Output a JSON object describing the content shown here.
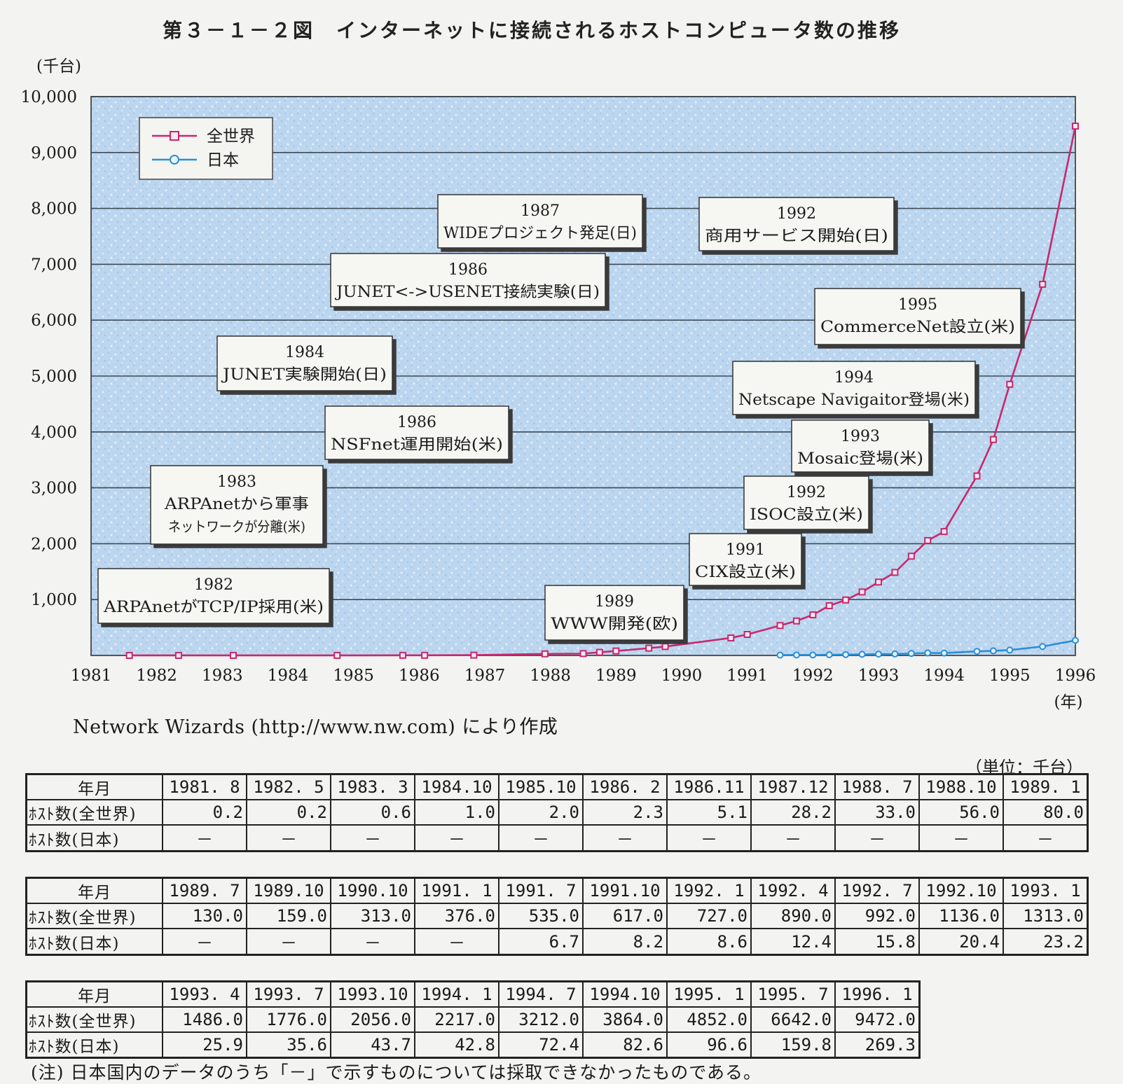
{
  "title": "第３－１－２図　インターネットに接続されるホストコンピュータ数の推移",
  "source": "Network Wizards (http://www.nw.com) により作成",
  "unit_note": "（単位：千台）",
  "footnote": "(注) 日本国内のデータのうち「－」で示すものについては採取できなかったものである。",
  "chart_data": {
    "type": "line",
    "ylabel": "(千台)",
    "xlabel": "(年)",
    "ylim": [
      0,
      10000
    ],
    "xlim": [
      1981,
      1996
    ],
    "yticks": [
      "10,000",
      "9,000",
      "8,000",
      "7,000",
      "6,000",
      "5,000",
      "4,000",
      "3,000",
      "2,000",
      "1,000"
    ],
    "xticks": [
      "1981",
      "1982",
      "1983",
      "1984",
      "1985",
      "1986",
      "1987",
      "1988",
      "1989",
      "1990",
      "1991",
      "1992",
      "1993",
      "1994",
      "1995",
      "1996"
    ],
    "legend_position": "top-left",
    "series": [
      {
        "name": "全世界",
        "color": "#c8286e",
        "marker": "square",
        "points": [
          [
            "1981.8",
            0.2
          ],
          [
            "1982.5",
            0.2
          ],
          [
            "1983.3",
            0.6
          ],
          [
            "1984.10",
            1.0
          ],
          [
            "1985.10",
            2.0
          ],
          [
            "1986.2",
            2.3
          ],
          [
            "1986.11",
            5.1
          ],
          [
            "1987.12",
            28.2
          ],
          [
            "1988.7",
            33.0
          ],
          [
            "1988.10",
            56.0
          ],
          [
            "1989.1",
            80.0
          ],
          [
            "1989.7",
            130.0
          ],
          [
            "1989.10",
            159.0
          ],
          [
            "1990.10",
            313.0
          ],
          [
            "1991.1",
            376.0
          ],
          [
            "1991.7",
            535.0
          ],
          [
            "1991.10",
            617.0
          ],
          [
            "1992.1",
            727.0
          ],
          [
            "1992.4",
            890.0
          ],
          [
            "1992.7",
            992.0
          ],
          [
            "1992.10",
            1136.0
          ],
          [
            "1993.1",
            1313.0
          ],
          [
            "1993.4",
            1486.0
          ],
          [
            "1993.7",
            1776.0
          ],
          [
            "1993.10",
            2056.0
          ],
          [
            "1994.1",
            2217.0
          ],
          [
            "1994.7",
            3212.0
          ],
          [
            "1994.10",
            3864.0
          ],
          [
            "1995.1",
            4852.0
          ],
          [
            "1995.7",
            6642.0
          ],
          [
            "1996.1",
            9472.0
          ]
        ]
      },
      {
        "name": "日本",
        "color": "#2a8fd8",
        "marker": "circle",
        "points": [
          [
            "1991.7",
            6.7
          ],
          [
            "1991.10",
            8.2
          ],
          [
            "1992.1",
            8.6
          ],
          [
            "1992.4",
            12.4
          ],
          [
            "1992.7",
            15.8
          ],
          [
            "1992.10",
            20.4
          ],
          [
            "1993.1",
            23.2
          ],
          [
            "1993.4",
            25.9
          ],
          [
            "1993.7",
            35.6
          ],
          [
            "1993.10",
            43.7
          ],
          [
            "1994.1",
            42.8
          ],
          [
            "1994.7",
            72.4
          ],
          [
            "1994.10",
            82.6
          ],
          [
            "1995.1",
            96.6
          ],
          [
            "1995.7",
            159.8
          ],
          [
            "1996.1",
            269.3
          ]
        ]
      }
    ],
    "annotations": [
      {
        "year": "1982",
        "text": "ARPAnetがTCP/IP採用(米)"
      },
      {
        "year": "1983",
        "text": "ARPAnetから軍事",
        "text2": "ネットワークが分離(米)"
      },
      {
        "year": "1984",
        "text": "JUNET実験開始(日)"
      },
      {
        "year": "1986",
        "text": "NSFnet運用開始(米)"
      },
      {
        "year": "1986",
        "text": "JUNET<->USENET接続実験(日)"
      },
      {
        "year": "1987",
        "text": "WIDEプロジェクト発足(日)"
      },
      {
        "year": "1989",
        "text": "WWW開発(欧)"
      },
      {
        "year": "1991",
        "text": "CIX設立(米)"
      },
      {
        "year": "1992",
        "text": "ISOC設立(米)"
      },
      {
        "year": "1992",
        "text": "商用サービス開始(日)"
      },
      {
        "year": "1993",
        "text": "Mosaic登場(米)"
      },
      {
        "year": "1994",
        "text": "Netscape Navigaitor登場(米)"
      },
      {
        "year": "1995",
        "text": "CommerceNet設立(米)"
      }
    ]
  },
  "tables": [
    {
      "label_date": "年月",
      "label_world": "ﾎｽﾄ数(全世界)",
      "label_japan": "ﾎｽﾄ数(日本)",
      "dates": [
        "1981. 8",
        "1982. 5",
        "1983. 3",
        "1984.10",
        "1985.10",
        "1986. 2",
        "1986.11",
        "1987.12",
        "1988. 7",
        "1988.10",
        "1989. 1"
      ],
      "world": [
        "0.2",
        "0.2",
        "0.6",
        "1.0",
        "2.0",
        "2.3",
        "5.1",
        "28.2",
        "33.0",
        "56.0",
        "80.0"
      ],
      "japan": [
        "－",
        "－",
        "－",
        "－",
        "－",
        "－",
        "－",
        "－",
        "－",
        "－",
        "－"
      ]
    },
    {
      "label_date": "年月",
      "label_world": "ﾎｽﾄ数(全世界)",
      "label_japan": "ﾎｽﾄ数(日本)",
      "dates": [
        "1989. 7",
        "1989.10",
        "1990.10",
        "1991. 1",
        "1991. 7",
        "1991.10",
        "1992. 1",
        "1992. 4",
        "1992. 7",
        "1992.10",
        "1993. 1"
      ],
      "world": [
        "130.0",
        "159.0",
        "313.0",
        "376.0",
        "535.0",
        "617.0",
        "727.0",
        "890.0",
        "992.0",
        "1136.0",
        "1313.0"
      ],
      "japan": [
        "－",
        "－",
        "－",
        "－",
        "6.7",
        "8.2",
        "8.6",
        "12.4",
        "15.8",
        "20.4",
        "23.2"
      ]
    },
    {
      "label_date": "年月",
      "label_world": "ﾎｽﾄ数(全世界)",
      "label_japan": "ﾎｽﾄ数(日本)",
      "dates": [
        "1993. 4",
        "1993. 7",
        "1993.10",
        "1994. 1",
        "1994. 7",
        "1994.10",
        "1995. 1",
        "1995. 7",
        "1996. 1"
      ],
      "world": [
        "1486.0",
        "1776.0",
        "2056.0",
        "2217.0",
        "3212.0",
        "3864.0",
        "4852.0",
        "6642.0",
        "9472.0"
      ],
      "japan": [
        "25.9",
        "35.6",
        "43.7",
        "42.8",
        "72.4",
        "82.6",
        "96.6",
        "159.8",
        "269.3"
      ]
    }
  ]
}
